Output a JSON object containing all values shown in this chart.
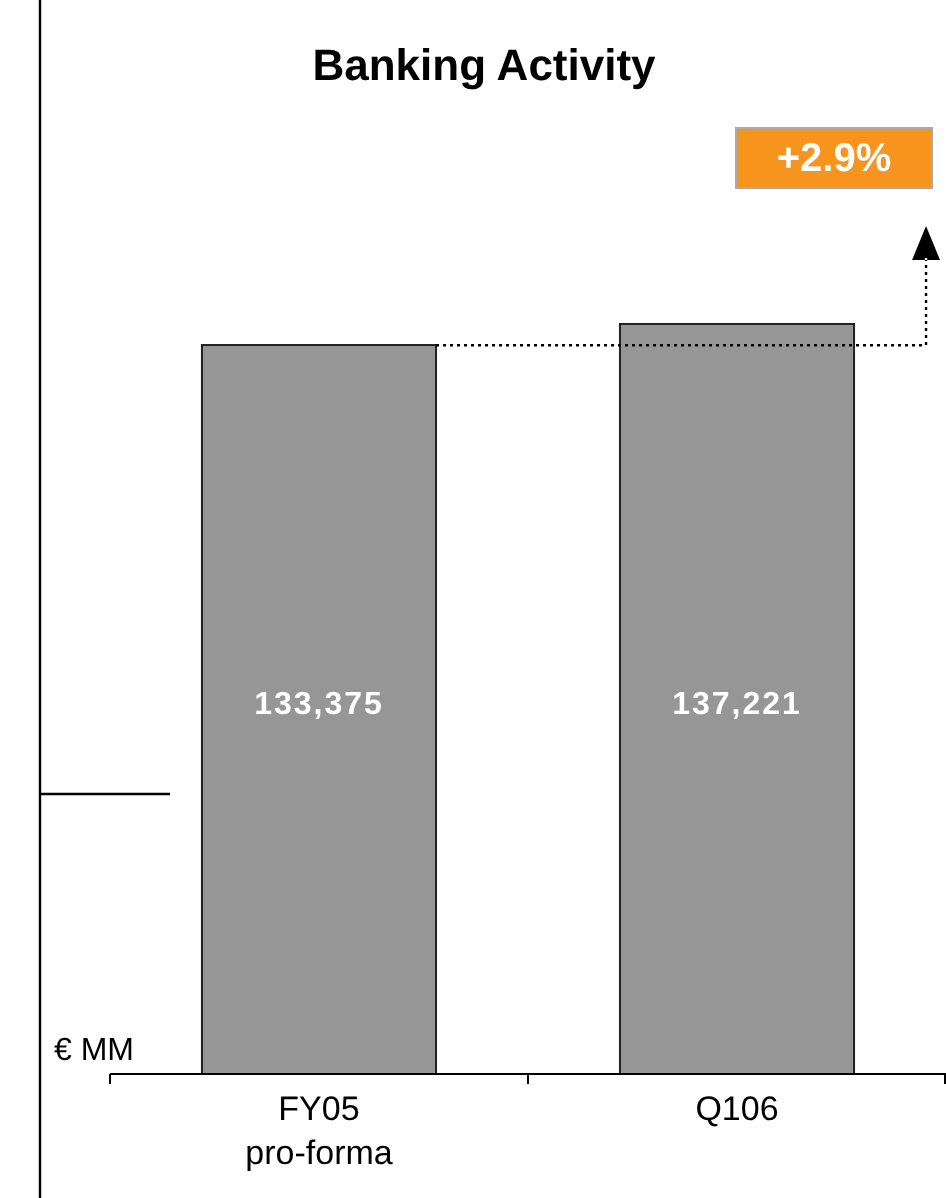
{
  "chart_data": {
    "type": "bar",
    "title": "Banking Activity",
    "ylabel": "€ MM",
    "categories": [
      "FY05\npro-forma",
      "Q106"
    ],
    "values": [
      133375,
      137221
    ],
    "color": "#969696",
    "value_labels": [
      "133,375",
      "137,221"
    ],
    "annotations": [
      "+2.9%"
    ]
  }
}
